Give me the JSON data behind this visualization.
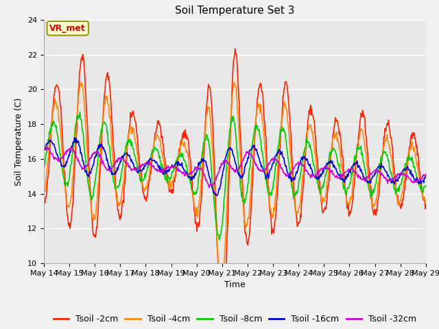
{
  "title": "Soil Temperature Set 3",
  "xlabel": "Time",
  "ylabel": "Soil Temperature (C)",
  "ylim": [
    10,
    24
  ],
  "yticks": [
    10,
    12,
    14,
    16,
    18,
    20,
    22,
    24
  ],
  "annotation_text": "VR_met",
  "annotation_color": "#cc0000",
  "annotation_bg": "#ffffcc",
  "annotation_border": "#999900",
  "series_colors": [
    "#ff2200",
    "#ff8800",
    "#00cc00",
    "#0000cc",
    "#cc00cc"
  ],
  "series_labels": [
    "Tsoil -2cm",
    "Tsoil -4cm",
    "Tsoil -8cm",
    "Tsoil -16cm",
    "Tsoil -32cm"
  ],
  "plot_bg": "#e8e8e8",
  "fig_bg": "#f0f0f0",
  "grid_color": "#ffffff",
  "n_days": 15,
  "start_day": 14,
  "title_fontsize": 11,
  "axis_label_fontsize": 9,
  "tick_fontsize": 8,
  "legend_fontsize": 9,
  "linewidth": 1.2
}
